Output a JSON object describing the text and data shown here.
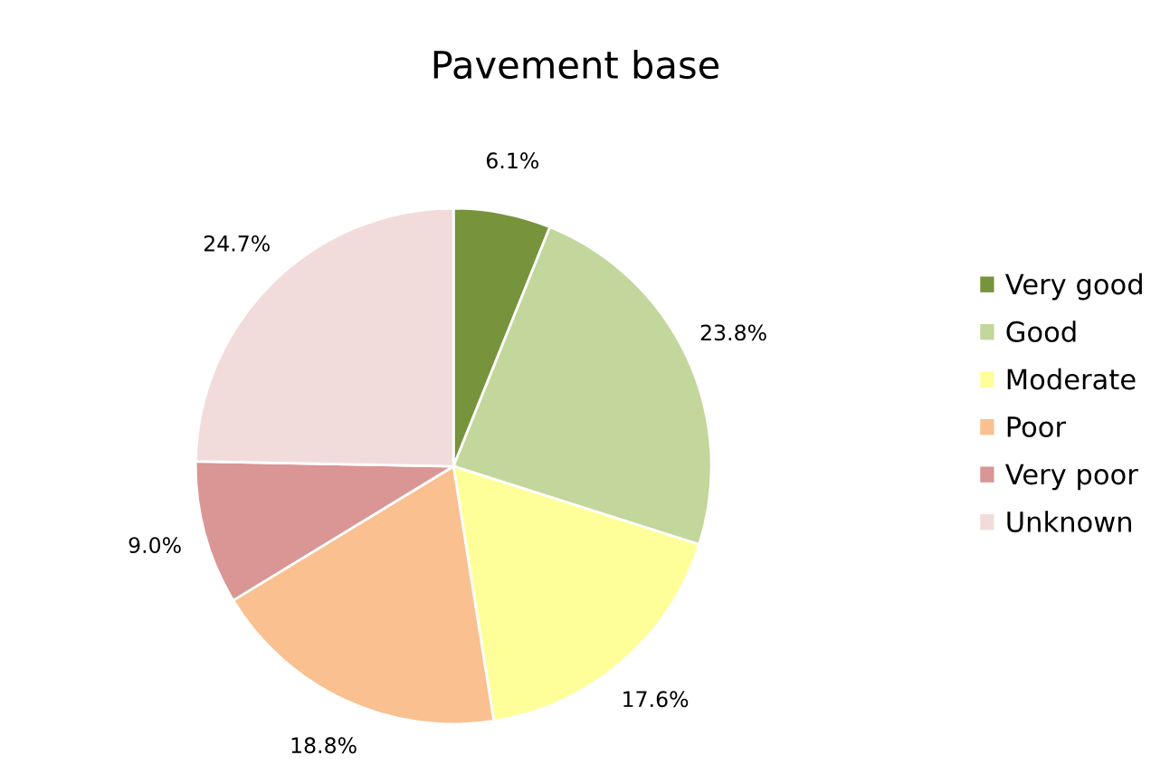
{
  "chart_data": {
    "type": "pie",
    "title": "Pavement base",
    "categories": [
      "Very good",
      "Good",
      "Moderate",
      "Poor",
      "Very poor",
      "Unknown"
    ],
    "values": [
      6.1,
      23.8,
      17.6,
      18.8,
      9.0,
      24.7
    ],
    "value_labels": [
      "6.1%",
      "23.8%",
      "17.6%",
      "18.8%",
      "9.0%",
      "24.7%"
    ],
    "colors": [
      "#77933c",
      "#c3d69b",
      "#ffff99",
      "#fac090",
      "#d99694",
      "#f2dcdb"
    ],
    "legend": "right"
  }
}
